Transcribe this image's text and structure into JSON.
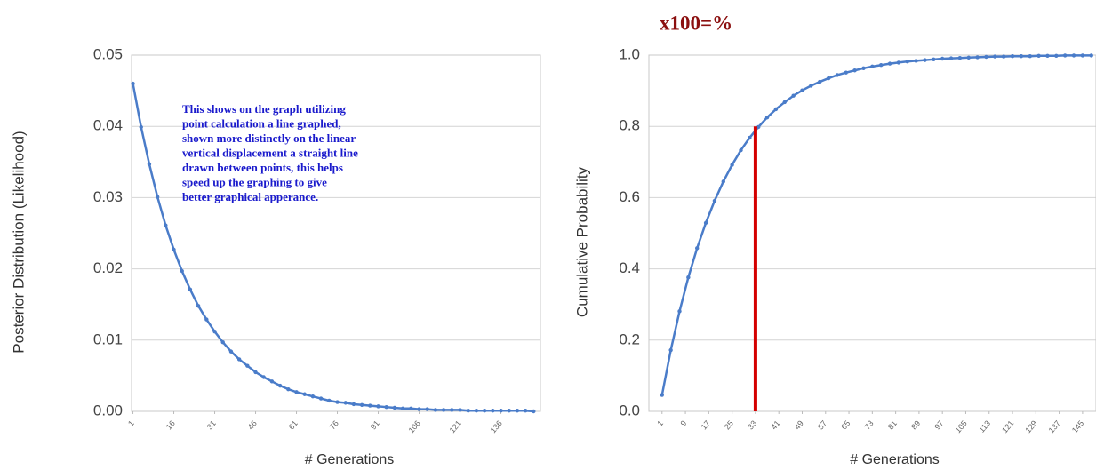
{
  "chart_data": [
    {
      "type": "line",
      "y_label": "Posterior Distribution (Likelihood)",
      "x_label": "# Generations",
      "annotation_lines": [
        "This shows on the graph utilizing",
        "point calculation a line graphed,",
        "shown more distinctly on the linear",
        "vertical displacement a straight line",
        "drawn between points, this helps",
        "speed up the graphing to give",
        "better graphical apperance."
      ],
      "annotation_color": "#1a1acc",
      "x": [
        1,
        4,
        7,
        10,
        13,
        16,
        19,
        22,
        25,
        28,
        31,
        34,
        37,
        40,
        43,
        46,
        49,
        52,
        55,
        58,
        61,
        64,
        67,
        70,
        73,
        76,
        79,
        82,
        85,
        88,
        91,
        94,
        97,
        100,
        103,
        106,
        109,
        112,
        115,
        118,
        121,
        124,
        127,
        130,
        133,
        136,
        139,
        142,
        145,
        148
      ],
      "series": [
        {
          "color": "#4a7cc9",
          "values": [
            0.046,
            0.0399,
            0.0347,
            0.0301,
            0.0261,
            0.0227,
            0.0197,
            0.0171,
            0.0148,
            0.0129,
            0.0112,
            0.0097,
            0.0084,
            0.0073,
            0.0064,
            0.0055,
            0.0048,
            0.0042,
            0.0036,
            0.0031,
            0.0027,
            0.0024,
            0.0021,
            0.0018,
            0.0015,
            0.0013,
            0.0012,
            0.001,
            0.0009,
            0.0008,
            0.0007,
            0.0006,
            0.0005,
            0.0004,
            0.0004,
            0.0003,
            0.0003,
            0.0002,
            0.0002,
            0.0002,
            0.0002,
            0.0001,
            0.0001,
            0.0001,
            0.0001,
            0.0001,
            0.0001,
            0.0001,
            0.0001,
            0
          ]
        }
      ],
      "xlim": [
        0.5,
        150.5
      ],
      "xticks": [
        1,
        16,
        31,
        46,
        61,
        76,
        91,
        106,
        121,
        136
      ],
      "ylim": [
        0,
        0.05
      ],
      "yticks": [
        {
          "value": 0,
          "label": "0.00"
        },
        0.01,
        0.02,
        0.03,
        0.04,
        0.05
      ],
      "grid": true
    },
    {
      "type": "line",
      "y_label": "Cumulative Probability",
      "x_label": "# Generations",
      "title_annotation": "x100=%",
      "title_annotation_color": "#8b0f0f",
      "marker": {
        "x": 33,
        "y": 0.8,
        "color": "#d40000"
      },
      "x": [
        1,
        4,
        7,
        10,
        13,
        16,
        19,
        22,
        25,
        28,
        31,
        34,
        37,
        40,
        43,
        46,
        49,
        52,
        55,
        58,
        61,
        64,
        67,
        70,
        73,
        76,
        79,
        82,
        85,
        88,
        91,
        94,
        97,
        100,
        103,
        106,
        109,
        112,
        115,
        118,
        121,
        124,
        127,
        130,
        133,
        136,
        139,
        142,
        145,
        148
      ],
      "series": [
        {
          "color": "#4a7cc9",
          "values": [
            0.046,
            0.172,
            0.281,
            0.376,
            0.458,
            0.529,
            0.591,
            0.645,
            0.692,
            0.733,
            0.768,
            0.798,
            0.825,
            0.848,
            0.868,
            0.886,
            0.901,
            0.914,
            0.925,
            0.935,
            0.944,
            0.951,
            0.957,
            0.963,
            0.968,
            0.972,
            0.976,
            0.979,
            0.982,
            0.984,
            0.986,
            0.988,
            0.99,
            0.991,
            0.992,
            0.993,
            0.994,
            0.995,
            0.996,
            0.996,
            0.997,
            0.997,
            0.997,
            0.998,
            0.998,
            0.998,
            0.999,
            0.999,
            0.999,
            0.999
          ]
        }
      ],
      "xlim": [
        -3.5,
        149.6
      ],
      "xticks": [
        1,
        9,
        17,
        25,
        33,
        41,
        49,
        57,
        65,
        73,
        81,
        89,
        97,
        105,
        113,
        121,
        129,
        137,
        145
      ],
      "ylim": [
        0,
        1
      ],
      "yticks": [
        {
          "value": 0,
          "label": "0.0"
        },
        0.2,
        0.4,
        0.6,
        0.8,
        {
          "value": 1,
          "label": "1.0"
        }
      ],
      "grid": true
    }
  ]
}
